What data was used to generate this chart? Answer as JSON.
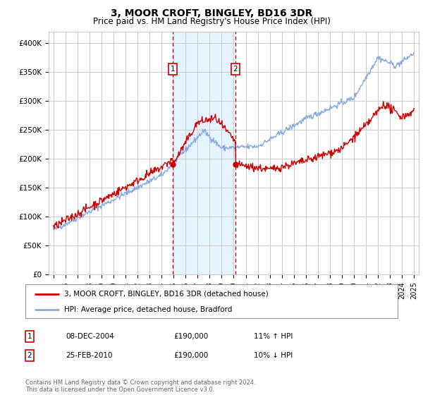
{
  "title": "3, MOOR CROFT, BINGLEY, BD16 3DR",
  "subtitle": "Price paid vs. HM Land Registry's House Price Index (HPI)",
  "footer": "Contains HM Land Registry data © Crown copyright and database right 2024.\nThis data is licensed under the Open Government Licence v3.0.",
  "legend_line1": "3, MOOR CROFT, BINGLEY, BD16 3DR (detached house)",
  "legend_line2": "HPI: Average price, detached house, Bradford",
  "transaction1_date": "08-DEC-2004",
  "transaction1_price": "£190,000",
  "transaction1_hpi": "11% ↑ HPI",
  "transaction2_date": "25-FEB-2010",
  "transaction2_price": "£190,000",
  "transaction2_hpi": "10% ↓ HPI",
  "ylim": [
    0,
    420000
  ],
  "yticks": [
    0,
    50000,
    100000,
    150000,
    200000,
    250000,
    300000,
    350000,
    400000
  ],
  "ytick_labels": [
    "£0",
    "£50K",
    "£100K",
    "£150K",
    "£200K",
    "£250K",
    "£300K",
    "£350K",
    "£400K"
  ],
  "transaction1_x": 2004.92,
  "transaction2_x": 2010.15,
  "transaction1_y": 190000,
  "transaction2_y": 190000,
  "shade_x1": 2004.92,
  "shade_x2": 2010.15,
  "line_color_property": "#cc0000",
  "line_color_hpi": "#88aadd",
  "background_color": "#ffffff",
  "grid_color": "#cccccc",
  "shade_color": "#ddeeff",
  "marker_color": "#cc0000",
  "xlim_left": 1994.6,
  "xlim_right": 2025.4
}
